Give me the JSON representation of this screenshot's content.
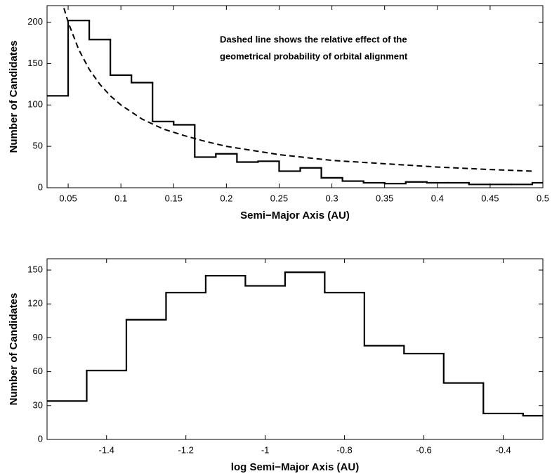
{
  "chart_data": [
    {
      "type": "histogram",
      "xlabel": "Semi−Major Axis (AU)",
      "ylabel": "Number of Candidates",
      "annotation": [
        "Dashed line shows the relative effect of the",
        "geometrical probability of orbital alignment"
      ],
      "bins": [
        0.03,
        0.05,
        0.07,
        0.09,
        0.11,
        0.13,
        0.15,
        0.17,
        0.19,
        0.21,
        0.23,
        0.25,
        0.27,
        0.29,
        0.31,
        0.33,
        0.35,
        0.37,
        0.39,
        0.41,
        0.43,
        0.45,
        0.47,
        0.49,
        0.51
      ],
      "values": [
        111,
        202,
        179,
        136,
        127,
        80,
        76,
        37,
        41,
        31,
        32,
        20,
        24,
        12,
        8,
        6,
        5,
        7,
        6,
        6,
        4,
        4,
        4,
        6
      ],
      "color": "#000000",
      "line": {
        "x": [
          0.046,
          0.05,
          0.06,
          0.07,
          0.08,
          0.09,
          0.1,
          0.12,
          0.14,
          0.16,
          0.18,
          0.2,
          0.25,
          0.3,
          0.35,
          0.4,
          0.45,
          0.49
        ],
        "values": [
          217,
          200,
          167,
          143,
          125,
          111,
          100,
          83,
          71,
          63,
          56,
          50,
          40,
          33,
          29,
          25,
          22,
          20
        ],
        "style": "dashed",
        "color": "#000000"
      },
      "xlim": [
        0.03,
        0.5
      ],
      "xticks": [
        0.05,
        0.1,
        0.15,
        0.2,
        0.25,
        0.3,
        0.35,
        0.4,
        0.45,
        0.5
      ],
      "ylim": [
        0,
        220
      ],
      "yticks": [
        0,
        50,
        100,
        150,
        200
      ]
    },
    {
      "type": "histogram",
      "xlabel": "log Semi−Major Axis (AU)",
      "ylabel": "Number of Candidates",
      "bins": [
        -1.55,
        -1.45,
        -1.35,
        -1.25,
        -1.15,
        -1.05,
        -0.95,
        -0.85,
        -0.75,
        -0.65,
        -0.55,
        -0.45,
        -0.35,
        -0.25
      ],
      "values": [
        34,
        61,
        106,
        130,
        145,
        136,
        148,
        130,
        83,
        76,
        50,
        23,
        21
      ],
      "color": "#000000",
      "xlim": [
        -1.55,
        -0.3
      ],
      "xticks": [
        -1.4,
        -1.2,
        -1,
        -0.8,
        -0.6,
        -0.4
      ],
      "ylim": [
        0,
        160
      ],
      "yticks": [
        0,
        30,
        60,
        90,
        120,
        150
      ]
    }
  ]
}
